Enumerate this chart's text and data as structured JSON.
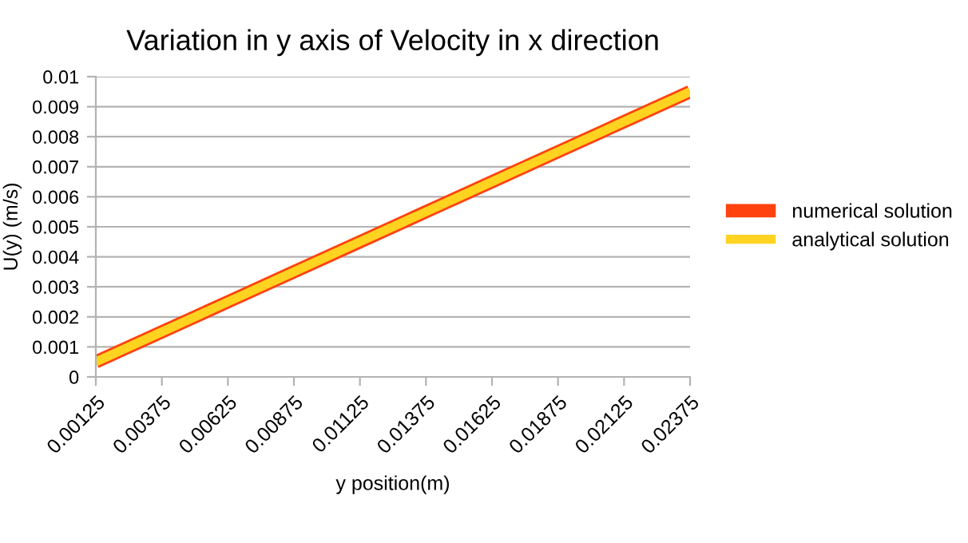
{
  "chart_data": {
    "type": "line",
    "title": "Variation in y axis of Velocity in x direction",
    "xlabel": "y position(m)",
    "ylabel": "U(y) (m/s)",
    "categories": [
      "0.00125",
      "0.00375",
      "0.00625",
      "0.00875",
      "0.01125",
      "0.01375",
      "0.01625",
      "0.01875",
      "0.02125",
      "0.02375"
    ],
    "series": [
      {
        "name": "numerical solution",
        "color": "#ff420e",
        "values": [
          0.0005,
          0.0015,
          0.0025,
          0.0035,
          0.0045,
          0.0055,
          0.0065,
          0.0075,
          0.0085,
          0.0095
        ]
      },
      {
        "name": "analytical solution",
        "color": "#ffd320",
        "values": [
          0.0005,
          0.0015,
          0.0025,
          0.0035,
          0.0045,
          0.0055,
          0.0065,
          0.0075,
          0.0085,
          0.0095
        ]
      }
    ],
    "ylim": [
      0,
      0.01
    ],
    "yticks": [
      0,
      0.001,
      0.002,
      0.003,
      0.004,
      0.005,
      0.006,
      0.007,
      0.008,
      0.009,
      0.01
    ],
    "grid": "y",
    "legend": "right",
    "marker": "none",
    "line_style": "solid"
  }
}
